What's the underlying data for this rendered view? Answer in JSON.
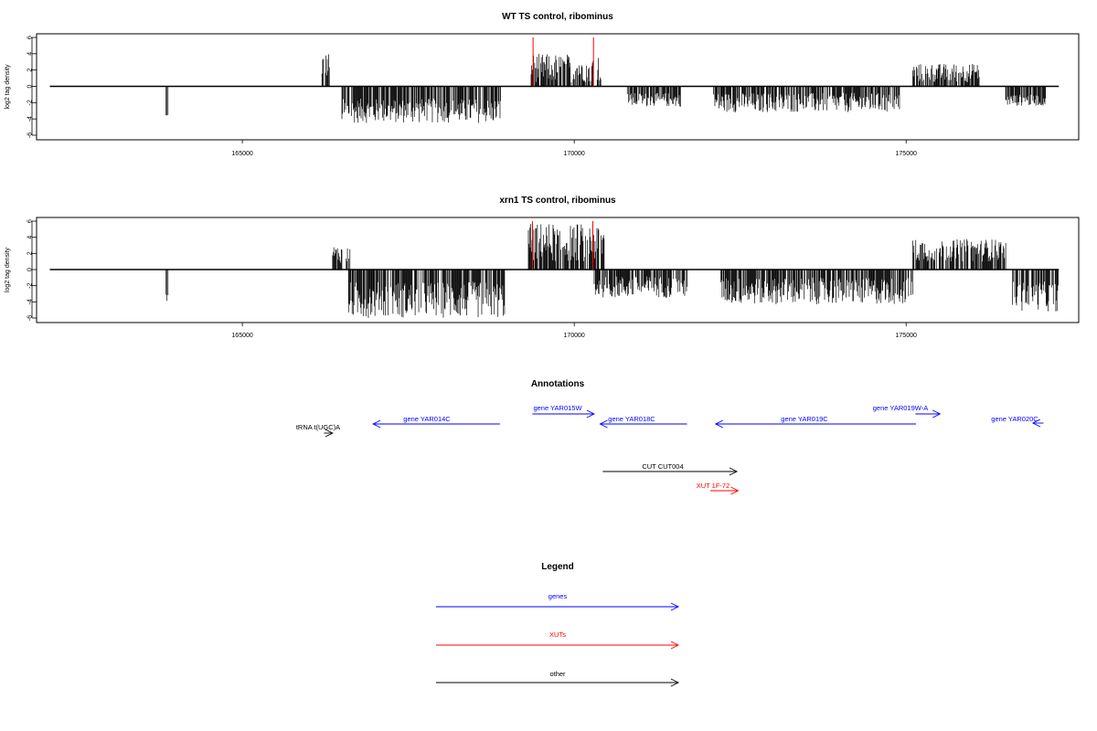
{
  "chart_data": [
    {
      "type": "bar",
      "title": "WT TS control, ribominus",
      "ylabel": "log2 tag density",
      "xlabel": "",
      "xlim": [
        161900,
        177600
      ],
      "ylim": [
        -6,
        6
      ],
      "xticks": [
        165000,
        170000,
        175000
      ],
      "xtick_labels": [
        "165000",
        "170000",
        "175000"
      ],
      "yticks": [
        6,
        4,
        2,
        0,
        -2,
        -4,
        -6
      ],
      "ytick_labels": [
        "6",
        "4",
        "2",
        "0",
        "-2",
        "-4",
        "-6"
      ],
      "baseline": {
        "x": [
          162100,
          177300
        ],
        "y": 0
      },
      "series": [
        {
          "color": "#000000",
          "segments": [
            {
              "x": [
                163850,
                163880
              ],
              "y": [
                -4.2,
                -3.2
              ]
            },
            {
              "x": [
                166200,
                166320
              ],
              "y": [
                1.0,
                4.2
              ]
            },
            {
              "x": [
                166500,
                168900
              ],
              "y": [
                -4.5,
                -1.5
              ]
            },
            {
              "x": [
                169350,
                170400
              ],
              "y": [
                0.5,
                4.0
              ]
            },
            {
              "x": [
                170800,
                171600
              ],
              "y": [
                -2.5,
                -0.8
              ]
            },
            {
              "x": [
                172100,
                174900
              ],
              "y": [
                -3.2,
                -0.8
              ]
            },
            {
              "x": [
                175100,
                176100
              ],
              "y": [
                0.5,
                2.8
              ]
            },
            {
              "x": [
                176500,
                177100
              ],
              "y": [
                -2.4,
                -1.0
              ]
            }
          ]
        },
        {
          "color": "#ff0000",
          "spikes": [
            {
              "x": 169380,
              "y": 6.0
            },
            {
              "x": 170290,
              "y": 6.0
            }
          ]
        }
      ]
    },
    {
      "type": "bar",
      "title": "xrn1 TS control, ribominus",
      "ylabel": "log2 tag density",
      "xlabel": "",
      "xlim": [
        161900,
        177600
      ],
      "ylim": [
        -6,
        6
      ],
      "xticks": [
        165000,
        170000,
        175000
      ],
      "xtick_labels": [
        "165000",
        "170000",
        "175000"
      ],
      "yticks": [
        6,
        4,
        2,
        0,
        -2,
        -4,
        -6
      ],
      "ytick_labels": [
        "6",
        "4",
        "2",
        "0",
        "-2",
        "-4",
        "-6"
      ],
      "baseline": {
        "x": [
          162100,
          177300
        ],
        "y": 0
      },
      "series": [
        {
          "color": "#000000",
          "segments": [
            {
              "x": [
                163850,
                163880
              ],
              "y": [
                -4.0,
                -3.0
              ]
            },
            {
              "x": [
                166350,
                166630
              ],
              "y": [
                0.8,
                3.0
              ]
            },
            {
              "x": [
                166600,
                168950
              ],
              "y": [
                -6.0,
                -1.5
              ]
            },
            {
              "x": [
                169300,
                170450
              ],
              "y": [
                1.0,
                5.8
              ]
            },
            {
              "x": [
                170300,
                171700
              ],
              "y": [
                -3.5,
                -0.8
              ]
            },
            {
              "x": [
                172200,
                175100
              ],
              "y": [
                -4.3,
                -1.0
              ]
            },
            {
              "x": [
                175100,
                176500
              ],
              "y": [
                1.0,
                3.8
              ]
            },
            {
              "x": [
                176600,
                177300
              ],
              "y": [
                -5.2,
                -1.5
              ]
            }
          ]
        },
        {
          "color": "#ff0000",
          "spikes": [
            {
              "x": 169370,
              "y": 6.0
            },
            {
              "x": 170280,
              "y": 6.0
            }
          ]
        }
      ]
    }
  ],
  "annotations": {
    "title": "Annotations",
    "features": [
      {
        "label": "gene YAR014C",
        "color": "#0000ff",
        "strand": "-",
        "start": 166970,
        "end": 168880
      },
      {
        "label": "tRNA t(UGC)A",
        "color": "#000000",
        "strand": "+",
        "start": 166230,
        "end": 166360
      },
      {
        "label": "gene YAR015W",
        "color": "#0000ff",
        "strand": "+",
        "start": 169370,
        "end": 170300
      },
      {
        "label": "gene YAR018C",
        "color": "#0000ff",
        "strand": "-",
        "start": 170390,
        "end": 171700
      },
      {
        "label": "gene YAR019C",
        "color": "#0000ff",
        "strand": "-",
        "start": 172130,
        "end": 175150
      },
      {
        "label": "gene YAR019W-A",
        "color": "#0000ff",
        "strand": "+",
        "start": 175140,
        "end": 175510
      },
      {
        "label": "gene YAR020C",
        "color": "#0000ff",
        "strand": "-",
        "start": 176910,
        "end": 177070
      },
      {
        "label": "CUT CUT004",
        "color": "#000000",
        "strand": "+",
        "start": 170430,
        "end": 172450
      },
      {
        "label": "XUT 1F-72",
        "color": "#ff0000",
        "strand": "+",
        "start": 172050,
        "end": 172470
      }
    ]
  },
  "legend": {
    "title": "Legend",
    "items": [
      {
        "label": "genes",
        "color": "#0000ff"
      },
      {
        "label": "XUTs",
        "color": "#ff0000"
      },
      {
        "label": "other",
        "color": "#000000"
      }
    ]
  }
}
